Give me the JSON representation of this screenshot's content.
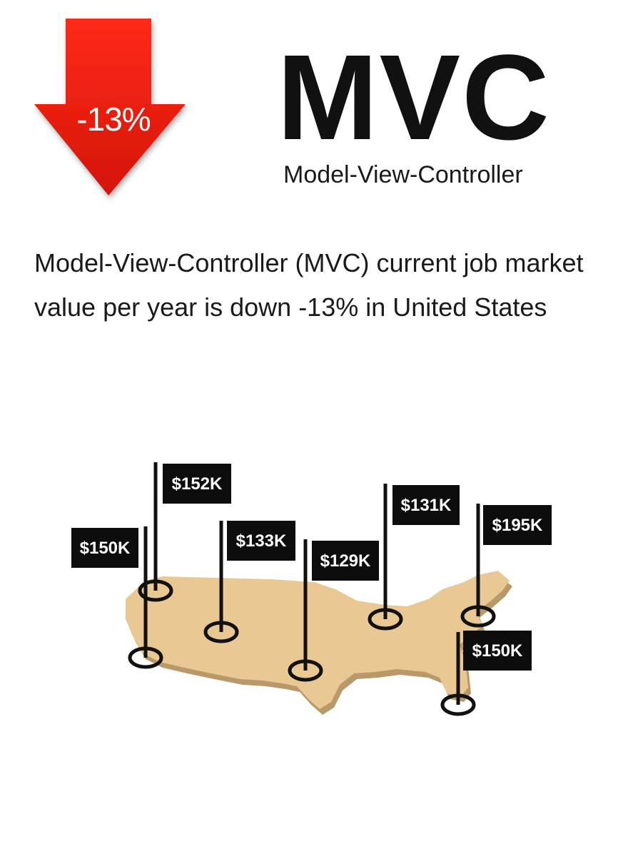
{
  "badge": {
    "change": "-13%",
    "color": "#e31b0c"
  },
  "header": {
    "acronym": "MVC",
    "full_name": "Model-View-Controller"
  },
  "description": "Model-View-Controller (MVC) current job market value per year is down -13% in United States",
  "map": {
    "region": "United States",
    "fill_color": "#e9c894",
    "markers": [
      {
        "label": "$150K",
        "value": 150
      },
      {
        "label": "$152K",
        "value": 152
      },
      {
        "label": "$133K",
        "value": 133
      },
      {
        "label": "$129K",
        "value": 129
      },
      {
        "label": "$131K",
        "value": 131
      },
      {
        "label": "$195K",
        "value": 195
      },
      {
        "label": "$150K",
        "value": 150
      }
    ]
  }
}
